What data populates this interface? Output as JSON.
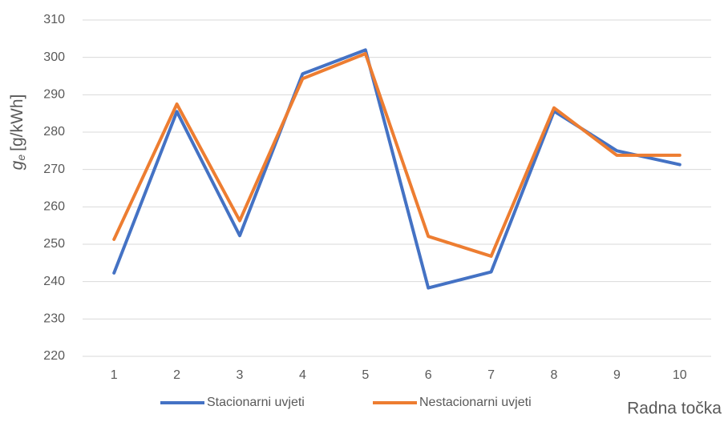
{
  "chart_data": {
    "type": "line",
    "categories": [
      "1",
      "2",
      "3",
      "4",
      "5",
      "6",
      "7",
      "8",
      "9",
      "10"
    ],
    "series": [
      {
        "name": "Stacionarni uvjeti",
        "color": "#4472c4",
        "values": [
          242.3,
          285.5,
          252.3,
          295.6,
          302,
          238.3,
          242.6,
          285.6,
          275,
          271.3
        ]
      },
      {
        "name": "Nestacionarni uvjeti",
        "color": "#ed7d31",
        "values": [
          251.3,
          287.5,
          256.3,
          294.3,
          301,
          252.1,
          246.8,
          286.5,
          273.8,
          273.8
        ]
      }
    ],
    "ylim": [
      220,
      310
    ],
    "yticks": [
      220,
      230,
      240,
      250,
      260,
      270,
      280,
      290,
      300,
      310
    ],
    "grid": true,
    "y_label_symbol": "g",
    "y_label_subscript": "e",
    "y_label_unit": "[g/kWh]",
    "x_label": "Radna točka",
    "legend": "bottom"
  }
}
